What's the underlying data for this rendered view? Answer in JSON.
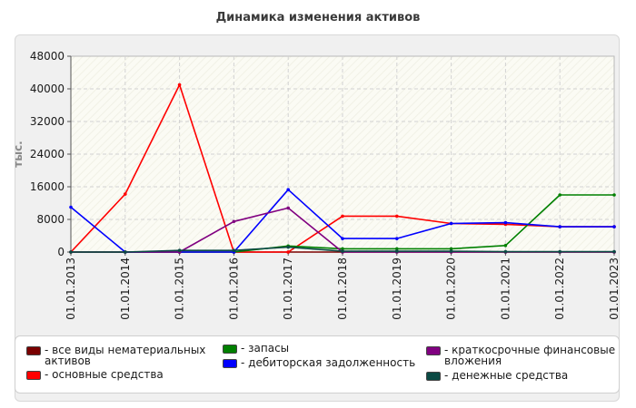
{
  "chart_data": {
    "type": "line",
    "title": "Динамика изменения активов",
    "ylabel": "тыс.",
    "xlabel": "",
    "ylim": [
      0,
      48000
    ],
    "yticks": [
      "0",
      "8000",
      "16000",
      "24000",
      "32000",
      "40000",
      "48000"
    ],
    "ytick_values": [
      0,
      8000,
      16000,
      24000,
      32000,
      40000,
      48000
    ],
    "categories": [
      "01.01.2013",
      "01.01.2014",
      "01.01.2015",
      "01.01.2016",
      "01.01.2017",
      "01.01.2018",
      "01.01.2019",
      "01.01.2020",
      "01.01.2021",
      "01.01.2022",
      "01.01.2023"
    ],
    "grid": true,
    "legend_position": "bottom",
    "series": [
      {
        "name": "все виды нематериальных активов",
        "legend_label": "- все виды нематериальных\nактивов",
        "color": "#7a0000",
        "values": [
          0,
          0,
          0,
          0,
          0,
          0,
          0,
          0,
          0,
          0,
          0
        ]
      },
      {
        "name": "основные средства",
        "legend_label": "- основные средства",
        "color": "#ff0000",
        "values": [
          0,
          14200,
          41000,
          0,
          0,
          8800,
          8800,
          7000,
          6800,
          6200,
          6200
        ]
      },
      {
        "name": "запасы",
        "legend_label": "- запасы",
        "color": "#008000",
        "values": [
          0,
          0,
          0,
          0,
          1500,
          800,
          800,
          800,
          1600,
          14000,
          14000
        ]
      },
      {
        "name": "дебиторская задолженность",
        "legend_label": "- дебиторская задолженность",
        "color": "#0000ff",
        "values": [
          11000,
          0,
          0,
          0,
          15300,
          3300,
          3300,
          7000,
          7200,
          6200,
          6200
        ]
      },
      {
        "name": "краткосрочные финансовые вложения",
        "legend_label": "- краткосрочные финансовые\nвложения",
        "color": "#800080",
        "values": [
          0,
          0,
          0,
          7500,
          10800,
          0,
          0,
          0,
          0,
          0,
          0
        ]
      },
      {
        "name": "денежные средства",
        "legend_label": "- денежные средства",
        "color": "#0b4a44",
        "values": [
          0,
          0,
          400,
          400,
          1200,
          200,
          200,
          200,
          100,
          100,
          100
        ]
      }
    ]
  }
}
